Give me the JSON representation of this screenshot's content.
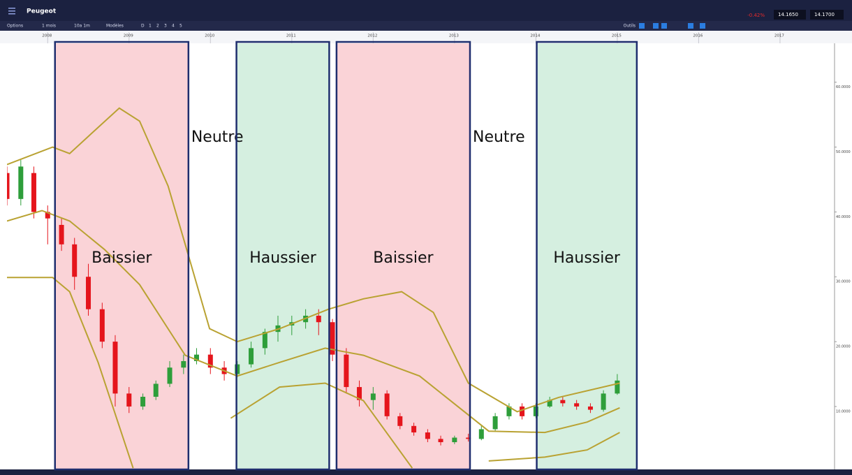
{
  "header": {
    "title": "Peugeot",
    "change": "-0.42%",
    "bid": "14.1650",
    "ask": "14.1700"
  },
  "toolbar": {
    "items": [
      "Options",
      "1 mois",
      "10a 1m",
      "Modèles",
      "D",
      "1",
      "2",
      "3",
      "4",
      "5"
    ],
    "tools": "Outils"
  },
  "chart_data": {
    "type": "candlestick",
    "x": [
      2007.5,
      2007.67,
      2007.83,
      2008,
      2008.17,
      2008.33,
      2008.5,
      2008.67,
      2008.83,
      2009,
      2009.17,
      2009.33,
      2009.5,
      2009.67,
      2009.83,
      2010,
      2010.17,
      2010.33,
      2010.5,
      2010.67,
      2010.83,
      2011,
      2011.17,
      2011.33,
      2011.5,
      2011.67,
      2011.83,
      2012,
      2012.17,
      2012.33,
      2012.5,
      2012.67,
      2012.83,
      2013,
      2013.17,
      2013.33,
      2013.5,
      2013.67,
      2013.83,
      2014,
      2014.17,
      2014.33,
      2014.5,
      2014.67,
      2014.83,
      2015
    ],
    "open": [
      46,
      42,
      46,
      40,
      38,
      35,
      30,
      25,
      20,
      12,
      10,
      11.5,
      13.5,
      16,
      17,
      18,
      16,
      15,
      16.5,
      19,
      21.5,
      22.5,
      23,
      24,
      23,
      18,
      13,
      11,
      12,
      8.5,
      7,
      6,
      5,
      4.5,
      5.2,
      5,
      6.5,
      8.5,
      10,
      8.5,
      10,
      11,
      10.5,
      10,
      9.5,
      12
    ],
    "high": [
      47,
      48,
      47,
      41,
      39,
      36,
      32,
      26,
      21,
      13,
      12,
      14,
      17,
      18,
      19,
      19,
      17,
      17,
      20,
      22,
      24,
      24,
      25,
      25,
      23.5,
      19,
      14,
      13,
      12.5,
      9,
      7.5,
      6.5,
      5.5,
      5.5,
      5.8,
      7,
      9,
      10.5,
      10.5,
      10.5,
      11.5,
      11.5,
      11,
      10.5,
      12.5,
      15
    ],
    "low": [
      41,
      41,
      39,
      35,
      34,
      28,
      24,
      19,
      10,
      9,
      9.5,
      11,
      13,
      15,
      16.5,
      15,
      14,
      14.5,
      16,
      18,
      20,
      21,
      22,
      21,
      17,
      12,
      10,
      9.5,
      8,
      6.5,
      5.5,
      4.5,
      4,
      4.2,
      4.6,
      4.8,
      6.2,
      8,
      8,
      8.2,
      9.8,
      10,
      9.5,
      9,
      9.2,
      11.8
    ],
    "close": [
      42,
      47,
      40,
      39,
      35,
      30,
      25,
      20,
      12,
      10,
      11.5,
      13.5,
      16,
      17,
      18,
      16,
      15,
      16.5,
      19,
      21.5,
      22.5,
      23,
      24,
      23,
      18,
      13,
      11,
      12,
      8.5,
      7,
      6,
      5,
      4.5,
      5.2,
      5,
      6.5,
      8.5,
      10,
      8.5,
      10,
      11,
      10.5,
      10,
      9.5,
      12,
      14
    ],
    "up_color": "#2e9e3a",
    "down_color": "#e5151c",
    "series": [
      {
        "color": "#b9a232",
        "x": [
          2007.5,
          2008.06,
          2008.27,
          2008.53,
          2008.88,
          2009.13,
          2009.48,
          2009.69,
          2009.99,
          2010.33,
          2010.85,
          2011.45,
          2011.88,
          2012.35,
          2012.74,
          2013.17,
          2013.77,
          2014.28,
          2015.03
        ],
        "values": [
          47.3,
          50,
          49,
          52,
          56,
          54,
          44,
          35,
          22,
          20,
          22,
          25,
          26.6,
          27.7,
          24.5,
          13.6,
          9.2,
          11.4,
          13.6
        ]
      },
      {
        "color": "#b9a232",
        "x": [
          2007.5,
          2007.93,
          2008.27,
          2008.7,
          2009.13,
          2009.69,
          2010.33,
          2010.85,
          2011.41,
          2011.88,
          2012.57,
          2013.42,
          2014.11,
          2014.63,
          2015.03
        ],
        "values": [
          38.6,
          40.2,
          38.6,
          34.2,
          28.8,
          17.9,
          14.7,
          16.8,
          19,
          17.9,
          14.7,
          6.2,
          6,
          7.6,
          9.8
        ]
      },
      {
        "color": "#b9a232",
        "x": [
          2007.5,
          2008.06,
          2008.27,
          2008.62,
          2009.05,
          2009.6,
          2010.25,
          2010.85,
          2011.41,
          2011.88,
          2012.48,
          2013,
          2013.42,
          2014.11,
          2014.63,
          2015.03
        ],
        "values": [
          29.9,
          29.9,
          27.7,
          16.8,
          0.5,
          null,
          8.2,
          13,
          13.6,
          10.9,
          0.5,
          null,
          1.6,
          2.2,
          3.3,
          6
        ]
      }
    ],
    "xlim": [
      2007.5,
      2017.67
    ],
    "ylim": [
      0.3,
      66
    ],
    "xticks": [
      2008,
      2009,
      2010,
      2011,
      2012,
      2013,
      2014,
      2015,
      2016,
      2017
    ],
    "yticks": [
      {
        "value": 10,
        "label": "10.0000"
      },
      {
        "value": 20,
        "label": "20.0000"
      },
      {
        "value": 30,
        "label": "30.0000"
      },
      {
        "value": 40,
        "label": "40.0000"
      },
      {
        "value": 50,
        "label": "50.0000"
      },
      {
        "value": 60,
        "label": "60.0000"
      }
    ],
    "regions": [
      {
        "label": "Baissier",
        "start": 2008.09,
        "end": 2009.73,
        "color": "#fad3d7"
      },
      {
        "label": "Neutre",
        "start": 2009.73,
        "end": 2010.32
      },
      {
        "label": "Haussier",
        "start": 2010.32,
        "end": 2011.46,
        "color": "#d5efe0"
      },
      {
        "label": "Baissier",
        "start": 2011.55,
        "end": 2013.19,
        "color": "#fad3d7"
      },
      {
        "label": "Neutre",
        "start": 2013.19,
        "end": 2014.01
      },
      {
        "label": "Haussier",
        "start": 2014.01,
        "end": 2015.24,
        "color": "#d5efe0"
      }
    ]
  }
}
